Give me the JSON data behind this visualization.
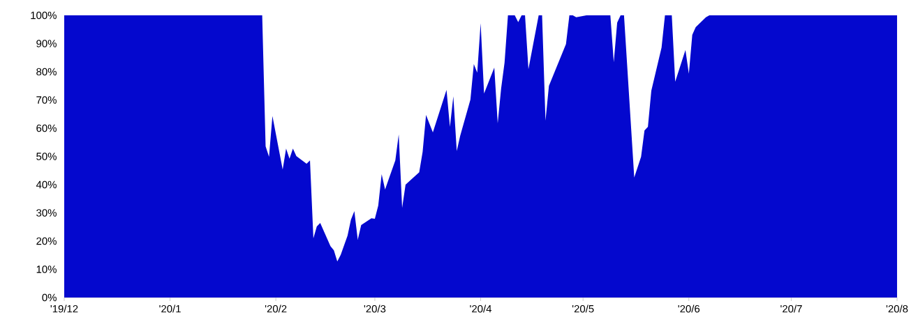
{
  "chart_data": {
    "type": "area",
    "color": "#0408ce",
    "x": [
      "2019-12-01",
      "2020-01-28",
      "2020-01-29",
      "2020-01-30",
      "2020-01-31",
      "2020-02-03",
      "2020-02-04",
      "2020-02-05",
      "2020-02-06",
      "2020-02-07",
      "2020-02-10",
      "2020-02-11",
      "2020-02-12",
      "2020-02-13",
      "2020-02-14",
      "2020-02-17",
      "2020-02-18",
      "2020-02-19",
      "2020-02-20",
      "2020-02-22",
      "2020-02-23",
      "2020-02-24",
      "2020-02-25",
      "2020-02-26",
      "2020-02-29",
      "2020-03-01",
      "2020-03-02",
      "2020-03-03",
      "2020-03-04",
      "2020-03-07",
      "2020-03-08",
      "2020-03-09",
      "2020-03-10",
      "2020-03-14",
      "2020-03-15",
      "2020-03-16",
      "2020-03-18",
      "2020-03-22",
      "2020-03-23",
      "2020-03-24",
      "2020-03-25",
      "2020-03-26",
      "2020-03-29",
      "2020-03-30",
      "2020-03-31",
      "2020-04-01",
      "2020-04-02",
      "2020-04-05",
      "2020-04-06",
      "2020-04-07",
      "2020-04-08",
      "2020-04-09",
      "2020-04-11",
      "2020-04-12",
      "2020-04-13",
      "2020-04-14",
      "2020-04-15",
      "2020-04-18",
      "2020-04-19",
      "2020-04-20",
      "2020-04-21",
      "2020-04-26",
      "2020-04-27",
      "2020-04-28",
      "2020-04-29",
      "2020-05-02",
      "2020-05-09",
      "2020-05-10",
      "2020-05-11",
      "2020-05-12",
      "2020-05-13",
      "2020-05-16",
      "2020-05-18",
      "2020-05-19",
      "2020-05-20",
      "2020-05-21",
      "2020-05-24",
      "2020-05-25",
      "2020-05-27",
      "2020-05-28",
      "2020-05-31",
      "2020-06-01",
      "2020-06-02",
      "2020-06-03",
      "2020-06-06",
      "2020-06-07",
      "2020-08-01"
    ],
    "values": [
      100,
      100,
      53.6,
      49.9,
      64.3,
      45.4,
      52.8,
      49.2,
      52.8,
      50.1,
      47.4,
      48.6,
      21.0,
      25.2,
      26.4,
      18.2,
      16.7,
      12.8,
      15.1,
      21.9,
      27.6,
      30.6,
      20.5,
      25.7,
      28.1,
      27.9,
      32.6,
      43.7,
      38.3,
      48.6,
      57.8,
      31.8,
      40.0,
      44.4,
      51.6,
      64.7,
      58.5,
      73.6,
      60.5,
      71.3,
      51.9,
      57.3,
      70.1,
      82.7,
      79.7,
      97.2,
      72.3,
      81.5,
      61.7,
      74.1,
      83.2,
      100,
      100,
      97.6,
      100,
      100,
      80.9,
      100,
      100,
      62.7,
      75.0,
      89.8,
      100,
      100,
      99.3,
      100,
      100,
      83.4,
      97.4,
      100,
      100,
      42.5,
      49.9,
      59.2,
      60.5,
      73.3,
      88.6,
      100,
      100,
      76.5,
      87.7,
      79.3,
      93.1,
      95.8,
      99.3,
      100,
      100
    ],
    "xlim": [
      "2019-12-01",
      "2020-08-01"
    ],
    "xticks": [
      {
        "value": "2019-12-01",
        "label": "'19/12"
      },
      {
        "value": "2020-01-01",
        "label": "'20/1"
      },
      {
        "value": "2020-02-01",
        "label": "'20/2"
      },
      {
        "value": "2020-03-01",
        "label": "'20/3"
      },
      {
        "value": "2020-04-01",
        "label": "'20/4"
      },
      {
        "value": "2020-05-01",
        "label": "'20/5"
      },
      {
        "value": "2020-06-01",
        "label": "'20/6"
      },
      {
        "value": "2020-07-01",
        "label": "'20/7"
      },
      {
        "value": "2020-08-01",
        "label": "'20/8"
      }
    ],
    "ylim": [
      0,
      100
    ],
    "yticks": [
      {
        "value": 0,
        "label": "0%"
      },
      {
        "value": 10,
        "label": "10%"
      },
      {
        "value": 20,
        "label": "20%"
      },
      {
        "value": 30,
        "label": "30%"
      },
      {
        "value": 40,
        "label": "40%"
      },
      {
        "value": 50,
        "label": "50%"
      },
      {
        "value": 60,
        "label": "60%"
      },
      {
        "value": 70,
        "label": "70%"
      },
      {
        "value": 80,
        "label": "80%"
      },
      {
        "value": 90,
        "label": "90%"
      },
      {
        "value": 100,
        "label": "100%"
      }
    ]
  }
}
